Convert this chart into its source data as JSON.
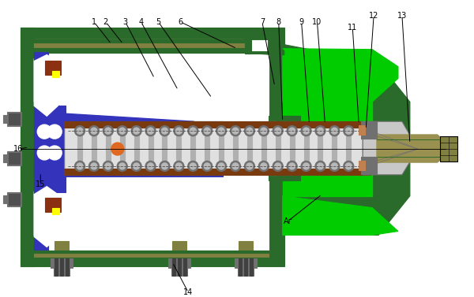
{
  "bg": "#ffffff",
  "gd": "#2a6a2a",
  "gb": "#00cc00",
  "bf": "#3333bb",
  "gg": "#c8c8c8",
  "glight": "#e0e0e0",
  "gdr": "#707070",
  "br": "#7a3a10",
  "ol": "#808040",
  "oll": "#9a9050",
  "od": "#e06820",
  "yw": "#ffff00",
  "cp": "#c08050",
  "lc": "#000000",
  "wh": "#ffffff"
}
